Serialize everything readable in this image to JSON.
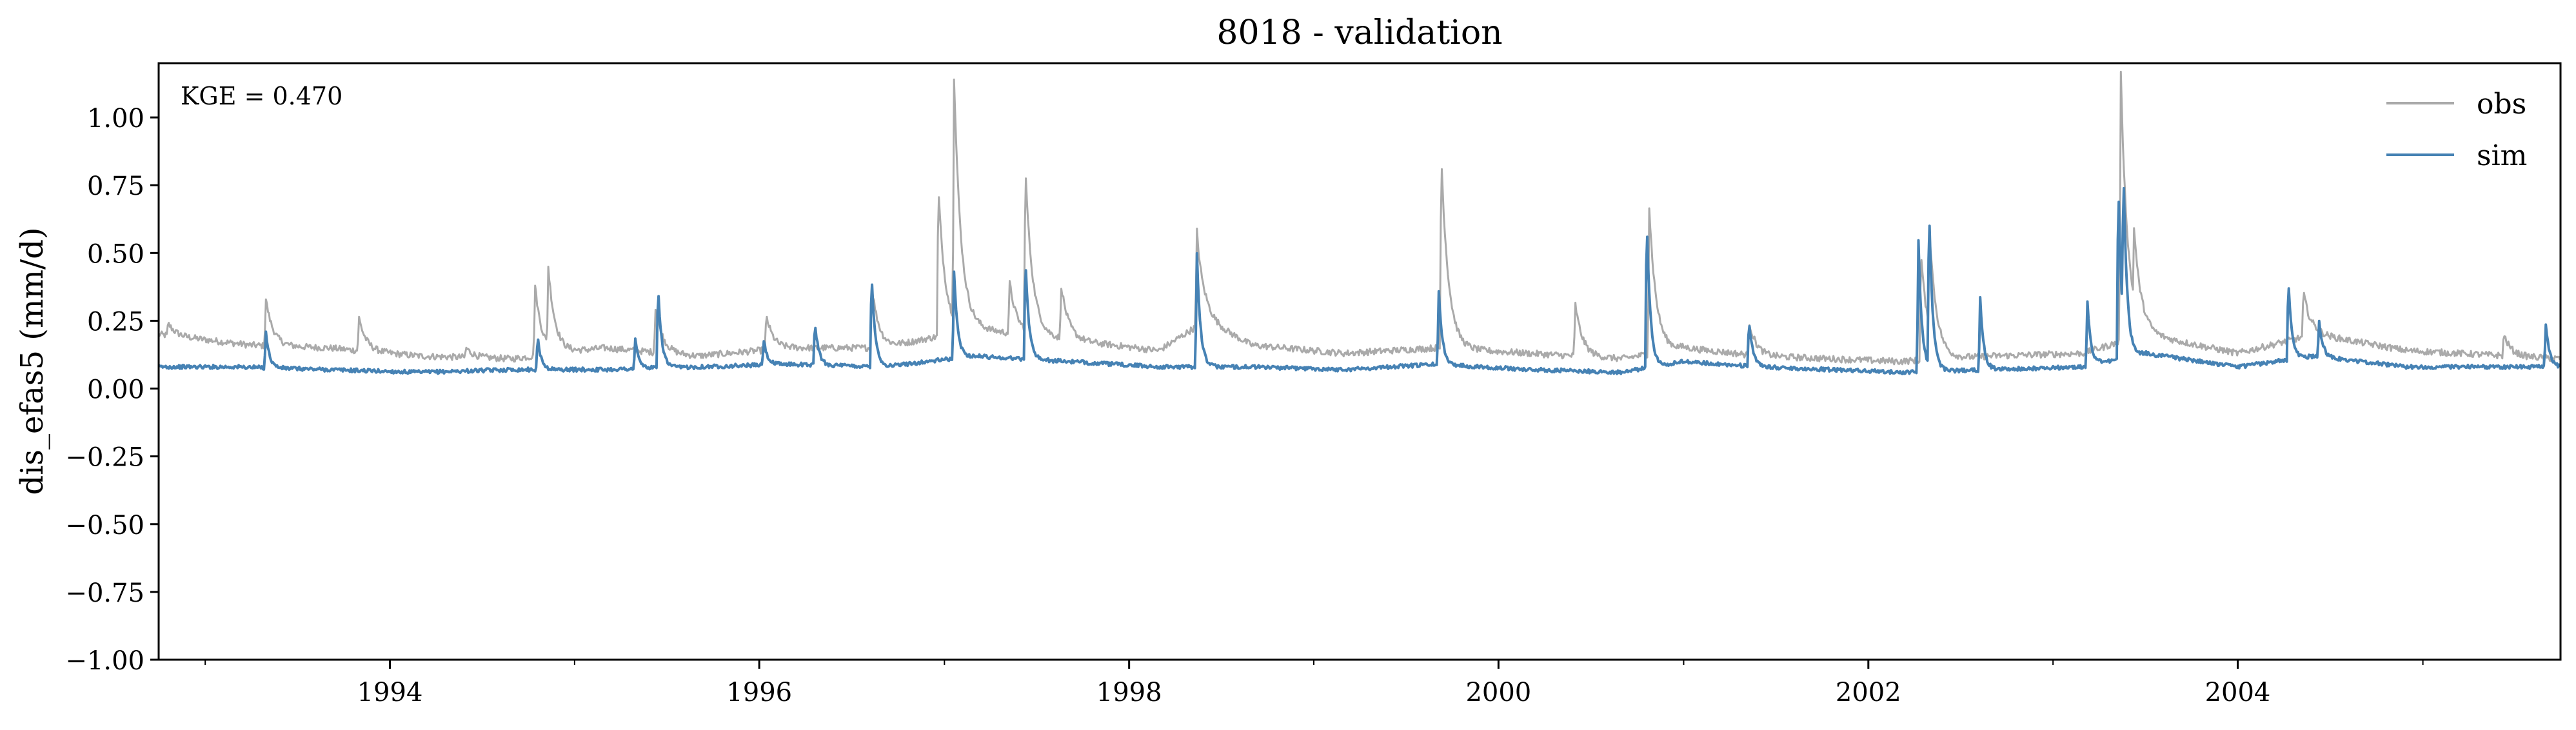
{
  "chart_data": {
    "type": "line",
    "title": "8018 - validation",
    "ylabel": "dis_efas5 (mm/d)",
    "xlabel": "",
    "ylim": [
      -1.0,
      1.2
    ],
    "xlim": [
      "1992-10-01",
      "2005-09-30"
    ],
    "y_ticks": [
      -1.0,
      -0.75,
      -0.5,
      -0.25,
      0.0,
      0.25,
      0.5,
      0.75,
      1.0
    ],
    "y_tick_labels": [
      "−1.00",
      "−0.75",
      "−0.50",
      "−0.25",
      "0.00",
      "0.25",
      "0.50",
      "0.75",
      "1.00"
    ],
    "x_major_ticks": [
      "1994-01-01",
      "1996-01-01",
      "1998-01-01",
      "2000-01-01",
      "2002-01-01",
      "2004-01-01"
    ],
    "x_tick_labels": [
      "1994",
      "1996",
      "1998",
      "2000",
      "2002",
      "2004"
    ],
    "x_minor_ticks": [
      "1993-01-01",
      "1995-01-01",
      "1997-01-01",
      "1999-01-01",
      "2001-01-01",
      "2003-01-01",
      "2005-01-01"
    ],
    "grid": false,
    "legend_position": "top-right",
    "annotation": "KGE = 0.470",
    "colors": {
      "obs": "#aaaaaa",
      "sim": "#4682b4"
    },
    "series": [
      {
        "name": "obs",
        "color": "#aaaaaa",
        "baseline": [
          [
            "1992-10-01",
            0.2
          ],
          [
            "1993-01-01",
            0.18
          ],
          [
            "1993-04-01",
            0.16
          ],
          [
            "1993-09-01",
            0.15
          ],
          [
            "1994-03-01",
            0.12
          ],
          [
            "1994-09-01",
            0.11
          ],
          [
            "1995-03-01",
            0.15
          ],
          [
            "1995-09-01",
            0.12
          ],
          [
            "1996-03-01",
            0.15
          ],
          [
            "1996-09-01",
            0.15
          ],
          [
            "1997-03-01",
            0.22
          ],
          [
            "1997-09-01",
            0.18
          ],
          [
            "1998-03-01",
            0.14
          ],
          [
            "1998-06-01",
            0.25
          ],
          [
            "1998-09-01",
            0.16
          ],
          [
            "1999-03-01",
            0.13
          ],
          [
            "1999-09-01",
            0.15
          ],
          [
            "2000-03-01",
            0.13
          ],
          [
            "2000-09-01",
            0.11
          ],
          [
            "2001-01-01",
            0.15
          ],
          [
            "2001-06-01",
            0.12
          ],
          [
            "2002-03-01",
            0.1
          ],
          [
            "2002-09-01",
            0.12
          ],
          [
            "2003-03-01",
            0.13
          ],
          [
            "2003-07-01",
            0.2
          ],
          [
            "2004-01-01",
            0.13
          ],
          [
            "2004-06-01",
            0.2
          ],
          [
            "2004-12-01",
            0.14
          ],
          [
            "2005-09-30",
            0.11
          ]
        ],
        "peaks": [
          [
            "1992-10-20",
            0.24
          ],
          [
            "1993-05-01",
            0.33
          ],
          [
            "1993-11-01",
            0.26
          ],
          [
            "1994-06-01",
            0.15
          ],
          [
            "1994-10-15",
            0.38
          ],
          [
            "1994-11-10",
            0.45
          ],
          [
            "1995-06-10",
            0.3
          ],
          [
            "1996-01-15",
            0.27
          ],
          [
            "1996-08-10",
            0.39
          ],
          [
            "1996-12-20",
            0.74
          ],
          [
            "1997-01-20",
            1.15
          ],
          [
            "1997-05-10",
            0.39
          ],
          [
            "1997-06-10",
            0.81
          ],
          [
            "1997-08-20",
            0.38
          ],
          [
            "1998-05-15",
            0.58
          ],
          [
            "1999-09-10",
            0.86
          ],
          [
            "2000-06-01",
            0.31
          ],
          [
            "2000-10-25",
            0.67
          ],
          [
            "2001-05-10",
            0.25
          ],
          [
            "2002-04-15",
            0.5
          ],
          [
            "2002-05-01",
            0.62
          ],
          [
            "2003-05-15",
            1.16
          ],
          [
            "2003-06-10",
            0.6
          ],
          [
            "2004-05-10",
            0.36
          ],
          [
            "2005-06-10",
            0.2
          ]
        ]
      },
      {
        "name": "sim",
        "color": "#4682b4",
        "baseline": [
          [
            "1992-10-01",
            0.08
          ],
          [
            "1993-03-01",
            0.08
          ],
          [
            "1993-09-01",
            0.07
          ],
          [
            "1994-03-01",
            0.06
          ],
          [
            "1994-09-01",
            0.07
          ],
          [
            "1995-03-01",
            0.07
          ],
          [
            "1995-09-01",
            0.08
          ],
          [
            "1996-03-01",
            0.09
          ],
          [
            "1996-09-01",
            0.08
          ],
          [
            "1997-03-01",
            0.12
          ],
          [
            "1997-09-01",
            0.1
          ],
          [
            "1998-03-01",
            0.08
          ],
          [
            "1998-09-01",
            0.08
          ],
          [
            "1999-03-01",
            0.07
          ],
          [
            "1999-09-01",
            0.09
          ],
          [
            "2000-03-01",
            0.07
          ],
          [
            "2000-09-01",
            0.06
          ],
          [
            "2001-01-01",
            0.1
          ],
          [
            "2001-06-01",
            0.08
          ],
          [
            "2002-03-01",
            0.06
          ],
          [
            "2002-09-01",
            0.07
          ],
          [
            "2003-03-01",
            0.08
          ],
          [
            "2003-07-01",
            0.13
          ],
          [
            "2004-01-01",
            0.08
          ],
          [
            "2004-06-01",
            0.12
          ],
          [
            "2004-12-01",
            0.08
          ],
          [
            "2005-09-30",
            0.08
          ]
        ],
        "peaks": [
          [
            "1993-05-01",
            0.21
          ],
          [
            "1994-10-20",
            0.19
          ],
          [
            "1995-05-01",
            0.18
          ],
          [
            "1995-06-15",
            0.38
          ],
          [
            "1996-01-10",
            0.18
          ],
          [
            "1996-04-20",
            0.25
          ],
          [
            "1996-08-10",
            0.43
          ],
          [
            "1997-01-20",
            0.43
          ],
          [
            "1997-06-10",
            0.48
          ],
          [
            "1998-05-15",
            0.5
          ],
          [
            "1999-09-05",
            0.36
          ],
          [
            "2000-10-20",
            0.64
          ],
          [
            "2001-05-10",
            0.26
          ],
          [
            "2002-04-10",
            0.54
          ],
          [
            "2002-05-01",
            0.69
          ],
          [
            "2002-08-10",
            0.33
          ],
          [
            "2003-03-10",
            0.32
          ],
          [
            "2003-05-10",
            0.77
          ],
          [
            "2003-05-20",
            0.84
          ],
          [
            "2004-04-10",
            0.41
          ],
          [
            "2004-06-10",
            0.25
          ],
          [
            "2005-09-01",
            0.24
          ]
        ]
      }
    ]
  }
}
